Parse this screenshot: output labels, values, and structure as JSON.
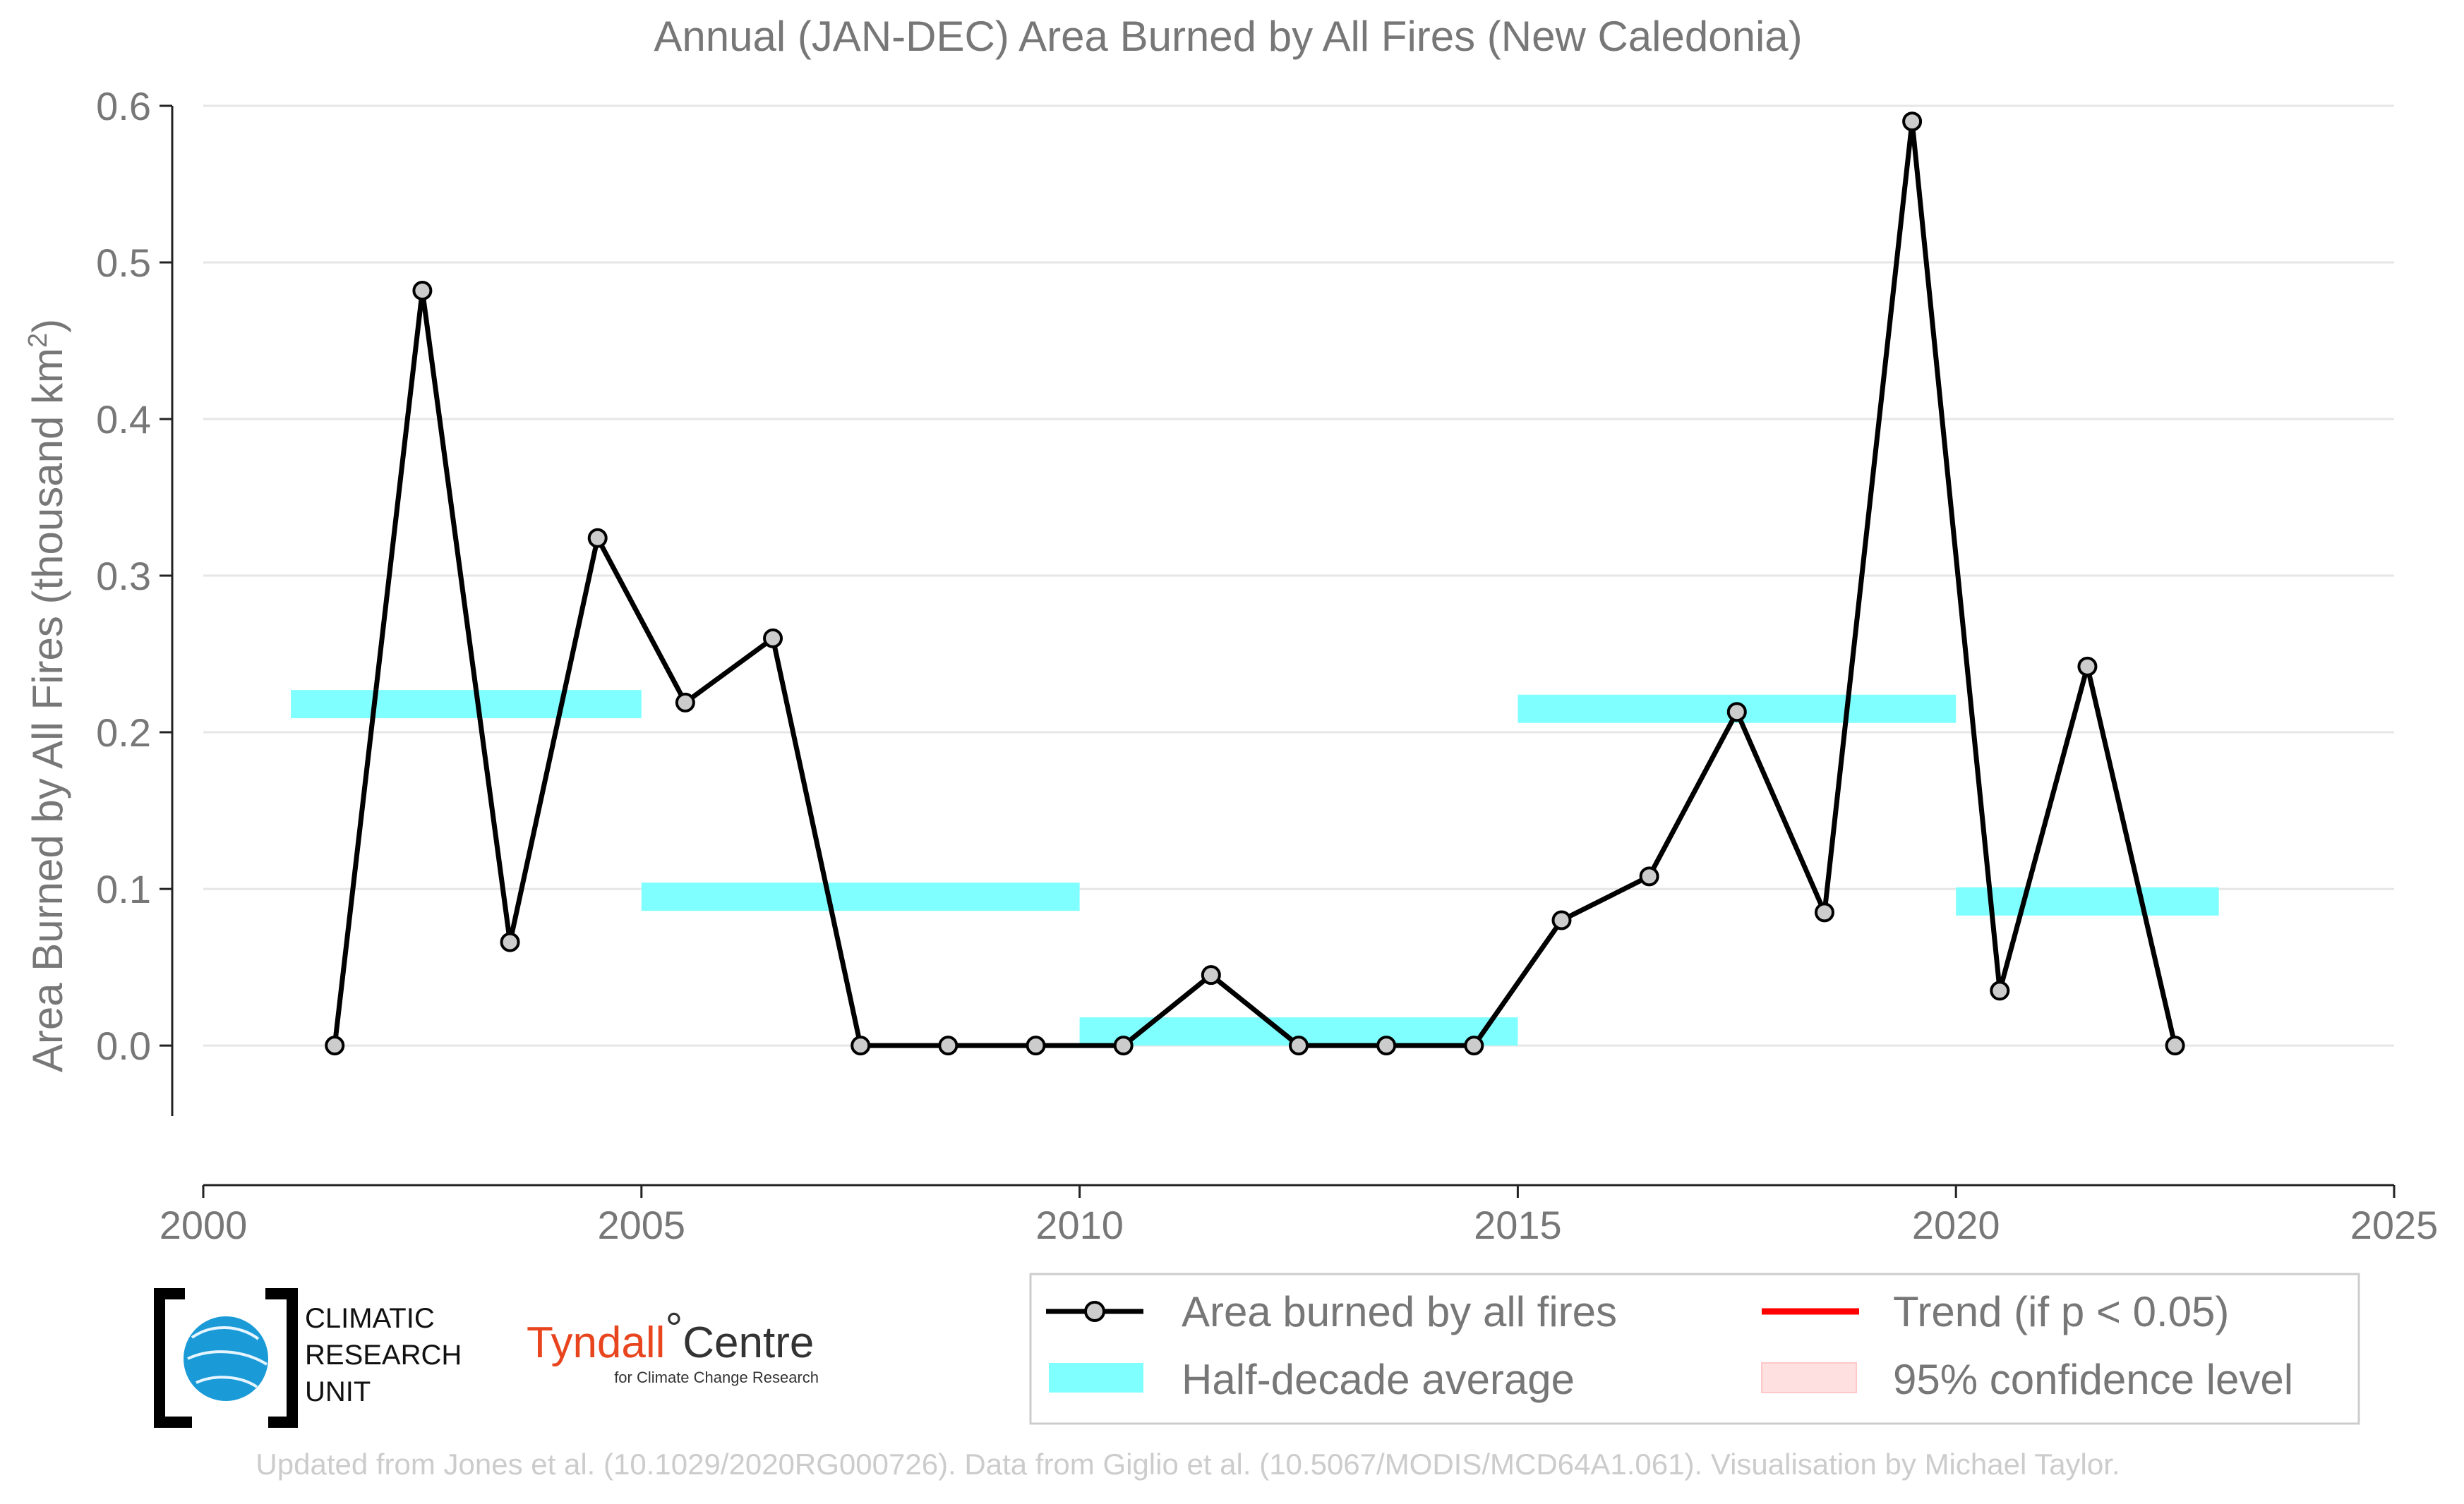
{
  "chart_data": {
    "type": "line",
    "title": "Annual (JAN-DEC) Area Burned by All Fires (New Caledonia)",
    "xlabel": "",
    "ylabel": "Area Burned by All Fires (thousand km",
    "ylabel_sup": "2",
    "ylabel_close": ")",
    "xlim": [
      2000,
      2025
    ],
    "ylim": [
      -0.045,
      0.6
    ],
    "xticks": [
      2000,
      2005,
      2010,
      2015,
      2020,
      2025
    ],
    "yticks": [
      0.0,
      0.1,
      0.2,
      0.3,
      0.4,
      0.5,
      0.6
    ],
    "ytick_labels": [
      "0.0",
      "0.1",
      "0.2",
      "0.3",
      "0.4",
      "0.5",
      "0.6"
    ],
    "grid": "horizontal",
    "series": [
      {
        "name": "Area burned by all fires",
        "color": "#000000",
        "marker_fill": "#cccccc",
        "x": [
          2001.5,
          2002.5,
          2003.5,
          2004.5,
          2005.5,
          2006.5,
          2007.5,
          2008.5,
          2009.5,
          2010.5,
          2011.5,
          2012.5,
          2013.5,
          2014.5,
          2015.5,
          2016.5,
          2017.5,
          2018.5,
          2019.5,
          2020.5,
          2021.5,
          2022.5
        ],
        "y": [
          0.0,
          0.482,
          0.066,
          0.324,
          0.219,
          0.26,
          0.0,
          0.0,
          0.0,
          0.0,
          0.045,
          0.0,
          0.0,
          0.0,
          0.08,
          0.108,
          0.213,
          0.085,
          0.59,
          0.035,
          0.242,
          0.0
        ]
      }
    ],
    "half_decade_average": {
      "name": "Half-decade average",
      "color": "#7fffff",
      "segments": [
        {
          "x0": 2001,
          "x1": 2005,
          "y": 0.218
        },
        {
          "x0": 2005,
          "x1": 2010,
          "y": 0.095
        },
        {
          "x0": 2010,
          "x1": 2015,
          "y": 0.009
        },
        {
          "x0": 2015,
          "x1": 2020,
          "y": 0.215
        },
        {
          "x0": 2020,
          "x1": 2023,
          "y": 0.092
        }
      ]
    },
    "legend": {
      "placement": "bottom-right",
      "entries": [
        {
          "label": "Area burned by all fires",
          "style": "line-marker",
          "color": "#000000"
        },
        {
          "label": "Trend (if p < 0.05)",
          "style": "line",
          "color": "#ff0000"
        },
        {
          "label": "Half-decade average",
          "style": "band",
          "color": "#7fffff"
        },
        {
          "label": "95% confidence level",
          "style": "band",
          "color": "#ffe0e0"
        }
      ]
    }
  },
  "logos": {
    "cru": {
      "line1": "CLIMATIC",
      "line2": "RESEARCH",
      "line3": "UNIT"
    },
    "tyndall": {
      "main": "Tyndall",
      "degree": "°",
      "centre": "Centre",
      "sub": "for Climate Change Research"
    }
  },
  "footer": "Updated from Jones et al. (10.1029/2020RG000726). Data from Giglio et al. (10.5067/MODIS/MCD64A1.061). Visualisation by Michael Taylor."
}
